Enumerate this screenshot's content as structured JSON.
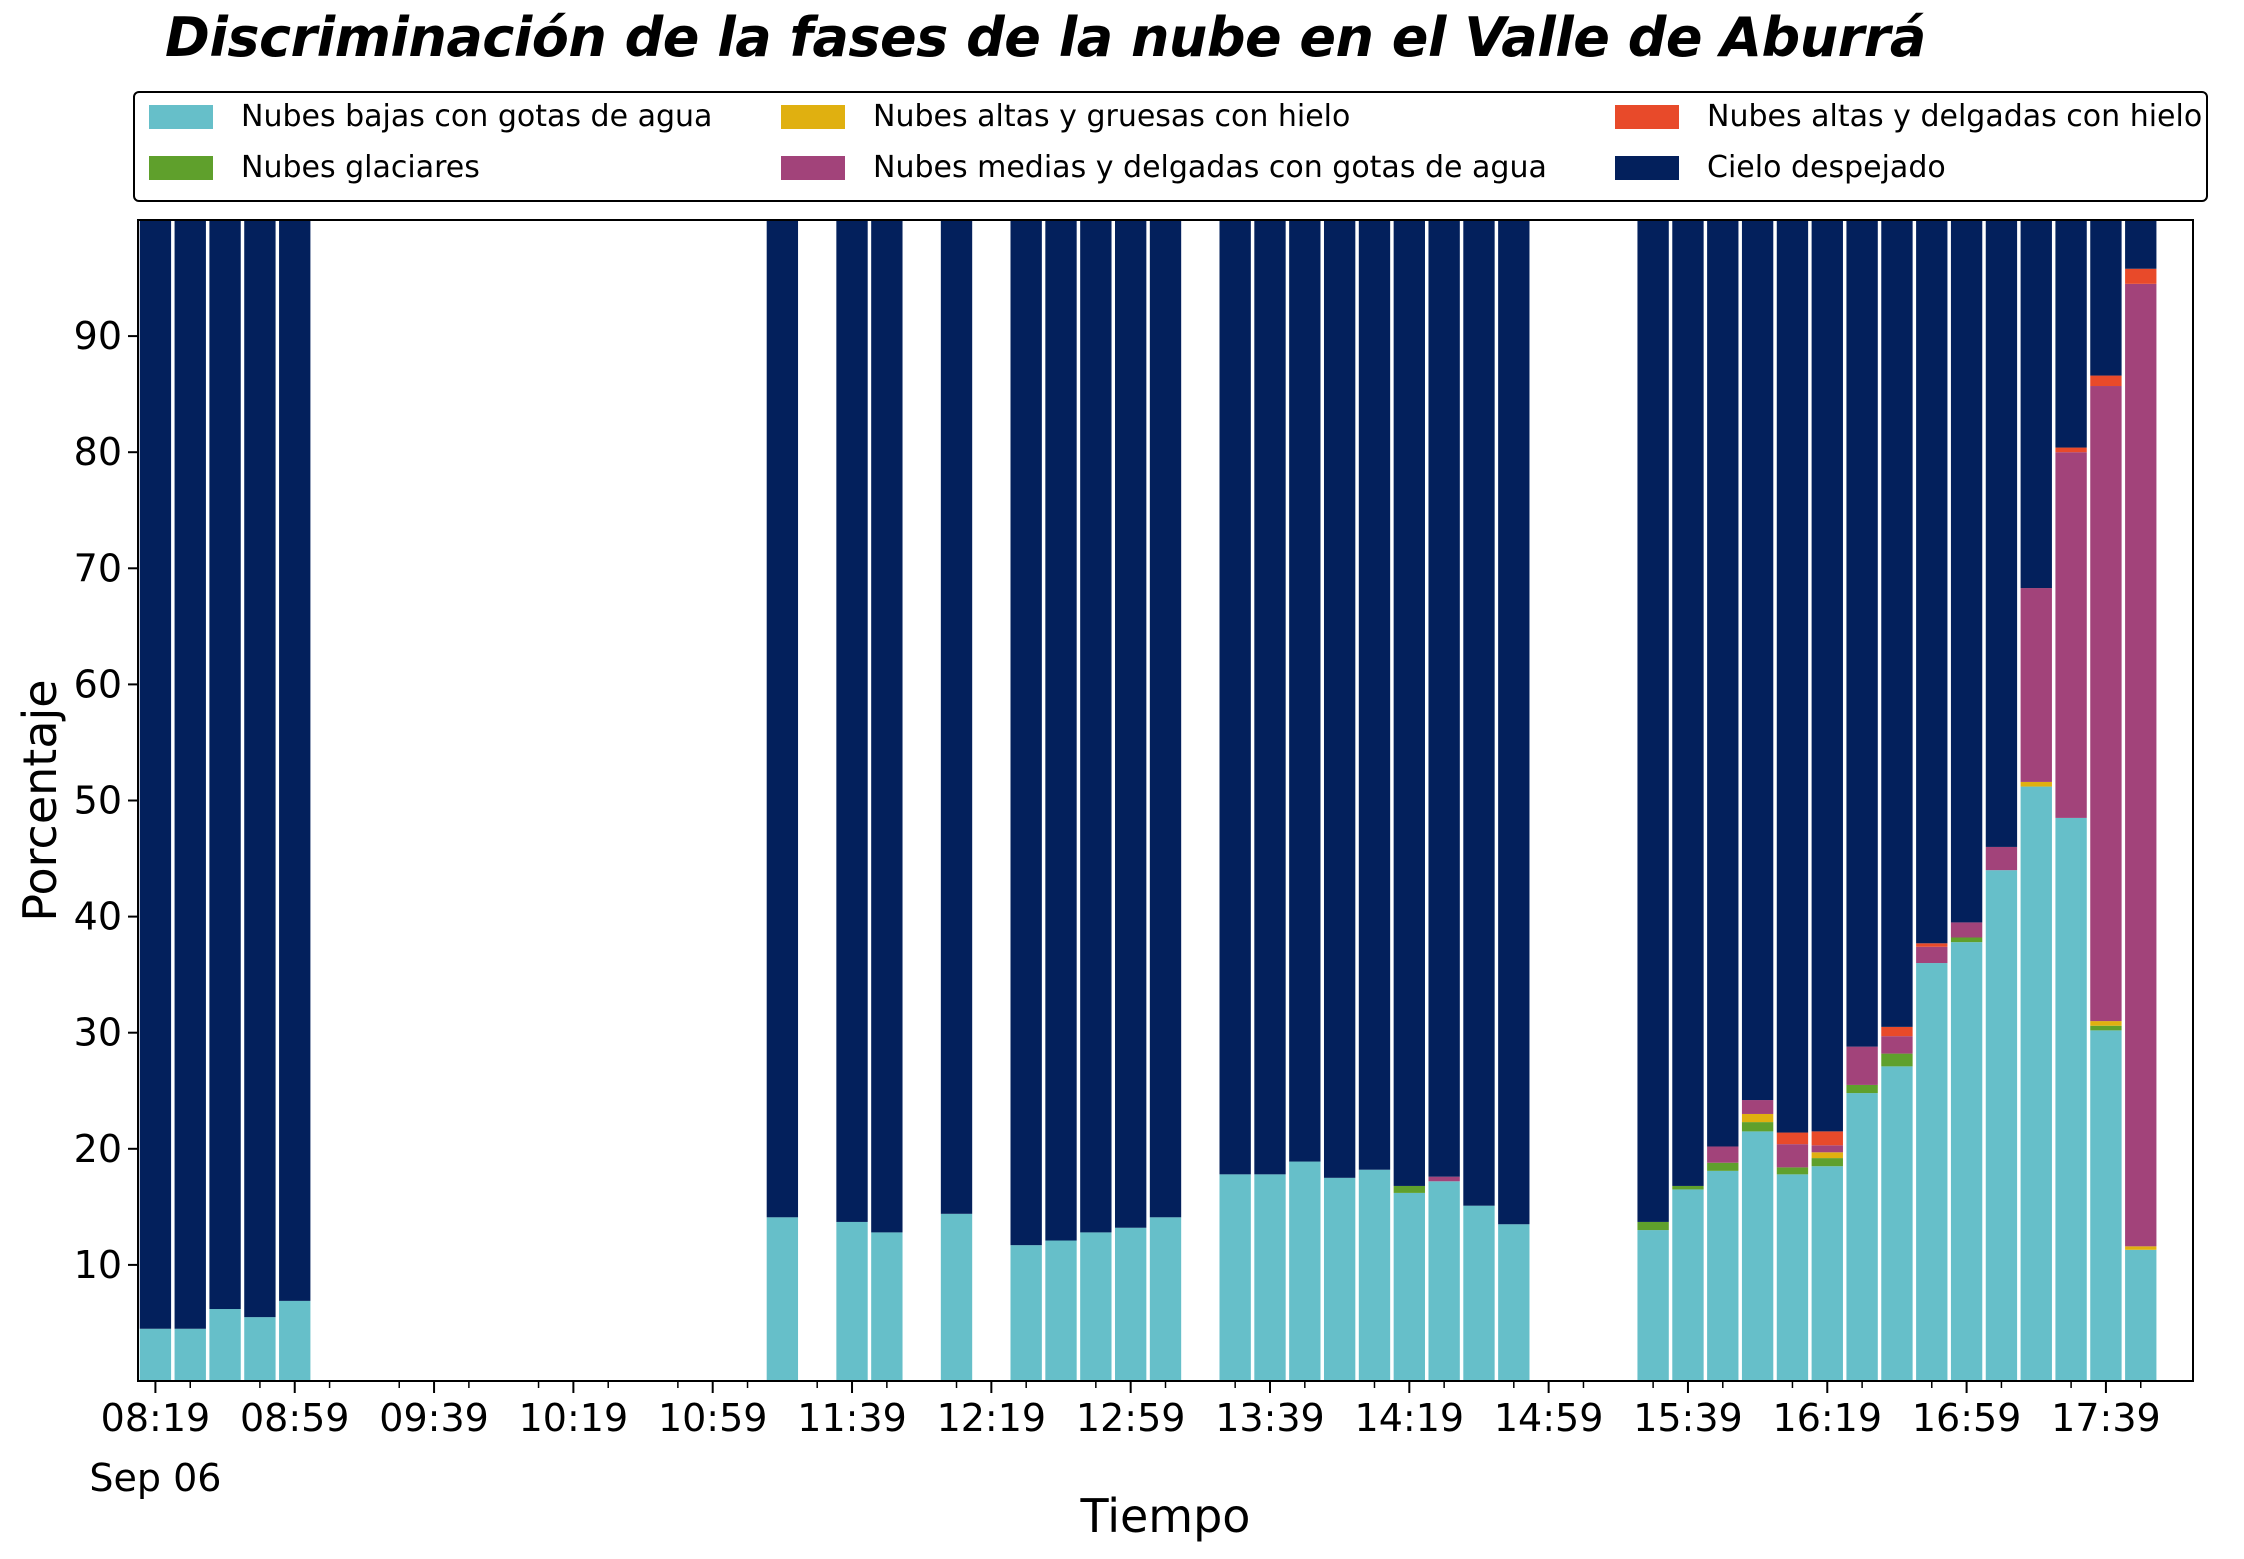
{
  "chart_data": {
    "type": "bar",
    "stacked": true,
    "title": "Discriminación de la fases de la nube en el Valle de Aburrá",
    "xlabel": "Tiempo",
    "ylabel": "Porcentaje",
    "ylim": [
      0,
      100
    ],
    "yticks": [
      10,
      20,
      30,
      40,
      50,
      60,
      70,
      80,
      90
    ],
    "xlim": [
      "08:14",
      "18:04"
    ],
    "bar_interval_minutes": 10,
    "xticks": [
      "08:19",
      "08:59",
      "09:39",
      "10:19",
      "10:59",
      "11:39",
      "12:19",
      "12:59",
      "13:39",
      "14:19",
      "14:59",
      "15:39",
      "16:19",
      "16:59",
      "17:39"
    ],
    "x_date_label": "Sep 06",
    "grid": false,
    "legend_position": "top",
    "x": [
      "08:19",
      "08:29",
      "08:39",
      "08:49",
      "08:59",
      "11:19",
      "11:39",
      "11:49",
      "12:09",
      "12:29",
      "12:39",
      "12:49",
      "12:59",
      "13:09",
      "13:29",
      "13:39",
      "13:49",
      "13:59",
      "14:09",
      "14:19",
      "14:29",
      "14:39",
      "14:49",
      "15:29",
      "15:39",
      "15:49",
      "15:59",
      "16:09",
      "16:19",
      "16:29",
      "16:39",
      "16:49",
      "16:59",
      "17:09",
      "17:19",
      "17:29",
      "17:39",
      "17:49",
      "17:59"
    ],
    "series": [
      {
        "name": "Nubes bajas con gotas de agua",
        "color": "#66bfc9",
        "values": [
          4.5,
          4.5,
          6.2,
          5.5,
          6.9,
          14.1,
          13.7,
          12.8,
          14.4,
          11.7,
          12.1,
          12.8,
          13.2,
          14.1,
          17.8,
          17.8,
          18.9,
          17.5,
          18.2,
          16.2,
          17.2,
          15.1,
          13.5,
          13.0,
          16.5,
          18.1,
          21.5,
          17.8,
          18.5,
          24.8,
          27.1,
          36.0,
          37.8,
          44.0,
          51.2,
          48.5,
          30.2,
          11.3,
          0
        ]
      },
      {
        "name": "Nubes glaciares",
        "color": "#5fa02c",
        "values": [
          0,
          0,
          0,
          0,
          0,
          0,
          0,
          0,
          0,
          0,
          0,
          0,
          0,
          0,
          0,
          0,
          0,
          0,
          0,
          0.6,
          0,
          0,
          0,
          0.7,
          0.3,
          0.7,
          0.8,
          0.6,
          0.7,
          0.7,
          1.1,
          0,
          0.4,
          0,
          0,
          0,
          0.4,
          0,
          0
        ]
      },
      {
        "name": "Nubes altas y gruesas con hielo",
        "color": "#e0b010",
        "values": [
          0,
          0,
          0,
          0,
          0,
          0,
          0,
          0,
          0,
          0,
          0,
          0,
          0,
          0,
          0,
          0,
          0,
          0,
          0,
          0,
          0,
          0,
          0,
          0,
          0,
          0,
          0.7,
          0,
          0.5,
          0,
          0,
          0,
          0,
          0,
          0.4,
          0,
          0.4,
          0.3,
          0
        ]
      },
      {
        "name": "Nubes medias y delgadas con gotas de agua",
        "color": "#a2437a",
        "values": [
          0,
          0,
          0,
          0,
          0,
          0,
          0,
          0,
          0,
          0,
          0,
          0,
          0,
          0,
          0,
          0,
          0,
          0,
          0,
          0,
          0.4,
          0,
          0,
          0,
          0,
          1.4,
          1.2,
          2.0,
          0.6,
          3.3,
          1.5,
          1.4,
          1.3,
          2.0,
          16.7,
          31.5,
          54.7,
          82.9,
          0
        ]
      },
      {
        "name": "Nubes altas y delgadas con hielo",
        "color": "#e84a2a",
        "values": [
          0,
          0,
          0,
          0,
          0,
          0,
          0,
          0,
          0,
          0,
          0,
          0,
          0,
          0,
          0,
          0,
          0,
          0,
          0,
          0,
          0,
          0,
          0,
          0,
          0,
          0,
          0,
          1.0,
          1.2,
          0,
          0.8,
          0.3,
          0,
          0,
          0,
          0.4,
          0.9,
          1.3,
          0
        ]
      },
      {
        "name": "Cielo despejado",
        "color": "#03205c",
        "values": [
          95.5,
          95.5,
          93.8,
          94.5,
          93.1,
          85.9,
          86.3,
          87.2,
          85.6,
          88.3,
          87.9,
          87.2,
          86.8,
          85.9,
          82.2,
          82.2,
          81.1,
          82.5,
          81.8,
          83.2,
          82.4,
          84.9,
          86.5,
          86.3,
          83.2,
          79.8,
          75.8,
          78.6,
          78.5,
          71.2,
          69.5,
          62.3,
          60.5,
          54.0,
          31.7,
          19.6,
          13.4,
          4.2,
          0
        ]
      }
    ]
  }
}
